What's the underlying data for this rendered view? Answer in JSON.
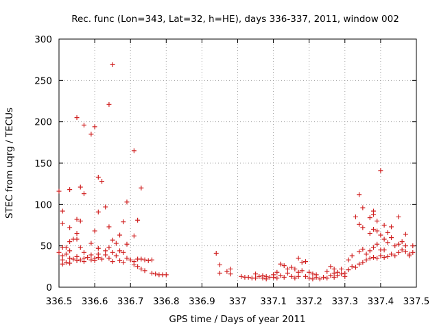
{
  "chart_data": {
    "type": "scatter",
    "title": "Rec. func (Lon=343, Lat=32, h=HE), days 336-337, 2011, window 002",
    "xlabel": "GPS time / Days of year 2011",
    "ylabel": "STEC from uqrg / TECUs",
    "xlim": [
      336.5,
      337.5
    ],
    "ylim": [
      0,
      300
    ],
    "xticks": [
      336.5,
      336.6,
      336.7,
      336.8,
      336.9,
      337,
      337.1,
      337.2,
      337.3,
      337.4,
      337.5
    ],
    "xtick_labels": [
      "336.5",
      "336.6",
      "336.7",
      "336.8",
      "336.9",
      "337",
      "337.1",
      "337.2",
      "337.3",
      "337.4",
      "337.5"
    ],
    "yticks": [
      0,
      50,
      100,
      150,
      200,
      250,
      300
    ],
    "ytick_labels": [
      "0",
      "50",
      "100",
      "150",
      "200",
      "250",
      "300"
    ],
    "grid": true,
    "marker": "plus",
    "color": "#d02020",
    "points": [
      [
        336.5,
        116
      ],
      [
        336.5,
        42
      ],
      [
        336.51,
        92
      ],
      [
        336.51,
        77
      ],
      [
        336.51,
        48
      ],
      [
        336.51,
        38
      ],
      [
        336.51,
        33
      ],
      [
        336.51,
        28
      ],
      [
        336.52,
        48
      ],
      [
        336.52,
        40
      ],
      [
        336.52,
        30
      ],
      [
        336.53,
        118
      ],
      [
        336.53,
        72
      ],
      [
        336.53,
        55
      ],
      [
        336.53,
        44
      ],
      [
        336.53,
        35
      ],
      [
        336.53,
        29
      ],
      [
        336.54,
        58
      ],
      [
        336.54,
        34
      ],
      [
        336.55,
        205
      ],
      [
        336.55,
        82
      ],
      [
        336.55,
        65
      ],
      [
        336.55,
        58
      ],
      [
        336.55,
        37
      ],
      [
        336.55,
        32
      ],
      [
        336.56,
        121
      ],
      [
        336.56,
        80
      ],
      [
        336.56,
        48
      ],
      [
        336.56,
        33
      ],
      [
        336.57,
        196
      ],
      [
        336.57,
        113
      ],
      [
        336.57,
        42
      ],
      [
        336.57,
        35
      ],
      [
        336.57,
        31
      ],
      [
        336.58,
        36
      ],
      [
        336.59,
        185
      ],
      [
        336.59,
        53
      ],
      [
        336.59,
        39
      ],
      [
        336.59,
        33
      ],
      [
        336.6,
        194
      ],
      [
        336.6,
        68
      ],
      [
        336.6,
        35
      ],
      [
        336.6,
        32
      ],
      [
        336.61,
        133
      ],
      [
        336.61,
        91
      ],
      [
        336.61,
        47
      ],
      [
        336.61,
        40
      ],
      [
        336.61,
        36
      ],
      [
        336.62,
        128
      ],
      [
        336.62,
        34
      ],
      [
        336.63,
        97
      ],
      [
        336.63,
        44
      ],
      [
        336.63,
        39
      ],
      [
        336.64,
        221
      ],
      [
        336.64,
        73
      ],
      [
        336.64,
        48
      ],
      [
        336.64,
        35
      ],
      [
        336.65,
        269
      ],
      [
        336.65,
        57
      ],
      [
        336.65,
        42
      ],
      [
        336.65,
        31
      ],
      [
        336.66,
        53
      ],
      [
        336.66,
        38
      ],
      [
        336.67,
        63
      ],
      [
        336.67,
        44
      ],
      [
        336.67,
        32
      ],
      [
        336.68,
        79
      ],
      [
        336.68,
        42
      ],
      [
        336.68,
        30
      ],
      [
        336.69,
        103
      ],
      [
        336.69,
        52
      ],
      [
        336.69,
        35
      ],
      [
        336.7,
        33
      ],
      [
        336.71,
        165
      ],
      [
        336.71,
        62
      ],
      [
        336.71,
        31
      ],
      [
        336.71,
        27
      ],
      [
        336.72,
        81
      ],
      [
        336.72,
        34
      ],
      [
        336.72,
        25
      ],
      [
        336.73,
        120
      ],
      [
        336.73,
        34
      ],
      [
        336.73,
        22
      ],
      [
        336.74,
        33
      ],
      [
        336.74,
        20
      ],
      [
        336.75,
        32
      ],
      [
        336.76,
        17
      ],
      [
        336.76,
        33
      ],
      [
        336.77,
        16
      ],
      [
        336.78,
        15
      ],
      [
        336.79,
        15
      ],
      [
        336.8,
        15
      ],
      [
        336.94,
        41
      ],
      [
        336.95,
        27
      ],
      [
        336.95,
        17
      ],
      [
        336.97,
        19
      ],
      [
        336.98,
        22
      ],
      [
        336.98,
        16
      ],
      [
        337.01,
        13
      ],
      [
        337.02,
        12
      ],
      [
        337.03,
        12
      ],
      [
        337.04,
        11
      ],
      [
        337.05,
        16
      ],
      [
        337.05,
        11
      ],
      [
        337.06,
        13
      ],
      [
        337.07,
        14
      ],
      [
        337.07,
        11
      ],
      [
        337.08,
        13
      ],
      [
        337.08,
        10
      ],
      [
        337.09,
        12
      ],
      [
        337.1,
        15
      ],
      [
        337.1,
        12
      ],
      [
        337.11,
        18
      ],
      [
        337.11,
        11
      ],
      [
        337.12,
        28
      ],
      [
        337.12,
        14
      ],
      [
        337.13,
        26
      ],
      [
        337.13,
        12
      ],
      [
        337.14,
        22
      ],
      [
        337.14,
        17
      ],
      [
        337.15,
        24
      ],
      [
        337.15,
        13
      ],
      [
        337.16,
        22
      ],
      [
        337.16,
        11
      ],
      [
        337.17,
        35
      ],
      [
        337.17,
        18
      ],
      [
        337.17,
        13
      ],
      [
        337.18,
        30
      ],
      [
        337.18,
        20
      ],
      [
        337.19,
        31
      ],
      [
        337.19,
        13
      ],
      [
        337.2,
        18
      ],
      [
        337.2,
        11
      ],
      [
        337.21,
        16
      ],
      [
        337.21,
        10
      ],
      [
        337.22,
        15
      ],
      [
        337.22,
        12
      ],
      [
        337.23,
        10
      ],
      [
        337.24,
        12
      ],
      [
        337.25,
        19
      ],
      [
        337.25,
        11
      ],
      [
        337.26,
        25
      ],
      [
        337.26,
        14
      ],
      [
        337.27,
        22
      ],
      [
        337.27,
        17
      ],
      [
        337.27,
        12
      ],
      [
        337.28,
        18
      ],
      [
        337.28,
        14
      ],
      [
        337.29,
        22
      ],
      [
        337.29,
        16
      ],
      [
        337.3,
        17
      ],
      [
        337.3,
        13
      ],
      [
        337.31,
        33
      ],
      [
        337.31,
        21
      ],
      [
        337.32,
        38
      ],
      [
        337.32,
        25
      ],
      [
        337.33,
        85
      ],
      [
        337.33,
        24
      ],
      [
        337.34,
        112
      ],
      [
        337.34,
        76
      ],
      [
        337.34,
        43
      ],
      [
        337.34,
        28
      ],
      [
        337.35,
        96
      ],
      [
        337.35,
        72
      ],
      [
        337.35,
        46
      ],
      [
        337.35,
        30
      ],
      [
        337.36,
        40
      ],
      [
        337.36,
        33
      ],
      [
        337.37,
        84
      ],
      [
        337.37,
        65
      ],
      [
        337.37,
        44
      ],
      [
        337.37,
        35
      ],
      [
        337.38,
        92
      ],
      [
        337.38,
        88
      ],
      [
        337.38,
        70
      ],
      [
        337.38,
        48
      ],
      [
        337.38,
        36
      ],
      [
        337.39,
        80
      ],
      [
        337.39,
        68
      ],
      [
        337.39,
        52
      ],
      [
        337.39,
        35
      ],
      [
        337.4,
        141
      ],
      [
        337.4,
        63
      ],
      [
        337.4,
        45
      ],
      [
        337.4,
        38
      ],
      [
        337.41,
        75
      ],
      [
        337.41,
        58
      ],
      [
        337.41,
        45
      ],
      [
        337.41,
        36
      ],
      [
        337.42,
        66
      ],
      [
        337.42,
        54
      ],
      [
        337.42,
        37
      ],
      [
        337.43,
        73
      ],
      [
        337.43,
        60
      ],
      [
        337.43,
        40
      ],
      [
        337.44,
        50
      ],
      [
        337.44,
        38
      ],
      [
        337.45,
        85
      ],
      [
        337.45,
        52
      ],
      [
        337.45,
        42
      ],
      [
        337.46,
        55
      ],
      [
        337.46,
        45
      ],
      [
        337.47,
        64
      ],
      [
        337.47,
        50
      ],
      [
        337.47,
        43
      ],
      [
        337.48,
        40
      ],
      [
        337.48,
        38
      ],
      [
        337.49,
        50
      ],
      [
        337.49,
        42
      ]
    ]
  }
}
